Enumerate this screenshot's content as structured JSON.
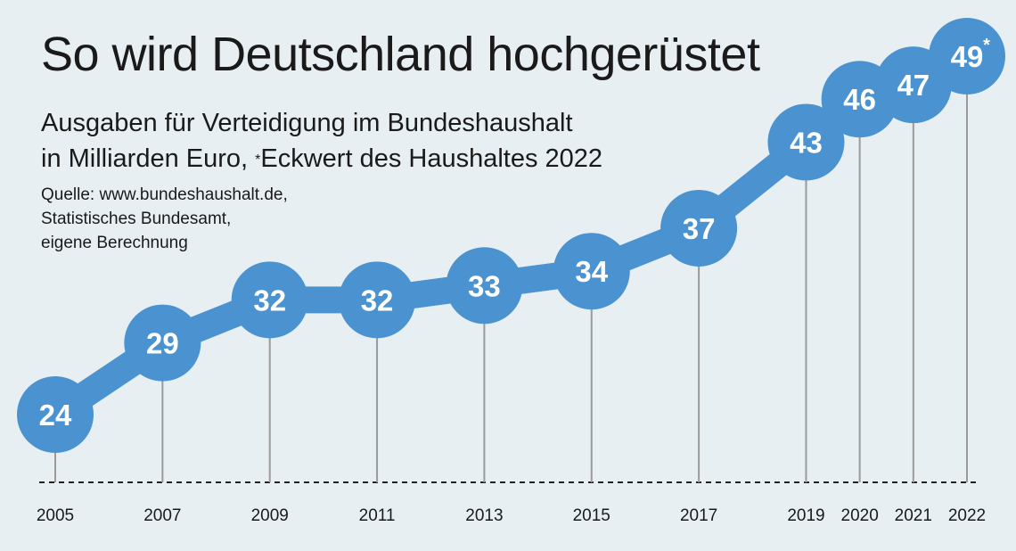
{
  "title": "So wird Deutschland hochgerüstet",
  "subtitle_line1": "Ausgaben für Verteidigung im Bundeshaushalt",
  "subtitle_line2_pre": "in Milliarden Euro, ",
  "subtitle_star": "*",
  "subtitle_line2_post": "Eckwert des Haushaltes 2022",
  "source_line1": "Quelle: www.bundeshaushalt.de,",
  "source_line2": "Statistisches Bundesamt,",
  "source_line3": "eigene Berechnung",
  "colors": {
    "line": "#4a93d0",
    "circle": "#4a93d0",
    "background": "#e8eff3",
    "stem": "#9a9a9a",
    "baseline": "#222222"
  },
  "chart_data": {
    "type": "line",
    "title": "So wird Deutschland hochgerüstet",
    "ylabel": "Milliarden Euro",
    "xlabel": "",
    "x": [
      2005,
      2007,
      2009,
      2011,
      2013,
      2015,
      2017,
      2019,
      2020,
      2021,
      2022
    ],
    "values": [
      24,
      29,
      32,
      32,
      33,
      34,
      37,
      43,
      46,
      47,
      49
    ],
    "value_labels": [
      "24",
      "29",
      "32",
      "32",
      "33",
      "34",
      "37",
      "43",
      "46",
      "47",
      "49"
    ],
    "x_labels": [
      "2005",
      "2007",
      "2009",
      "2011",
      "2013",
      "2015",
      "2017",
      "2019",
      "2020",
      "2021",
      "2022"
    ],
    "annotations": [
      {
        "x": 2022,
        "marker": "*"
      }
    ],
    "grid": false
  }
}
